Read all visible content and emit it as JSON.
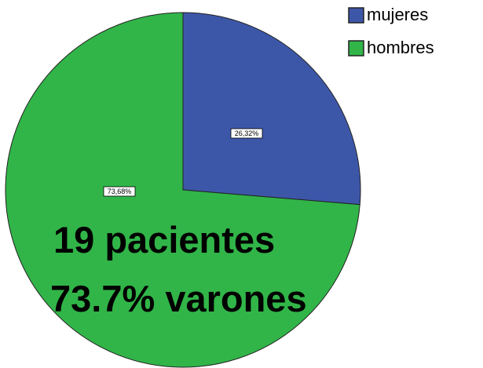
{
  "chart_data": {
    "type": "pie",
    "categories": [
      "mujeres",
      "hombres"
    ],
    "values": [
      26.32,
      73.68
    ],
    "value_labels": [
      "26,32%",
      "73,68%"
    ],
    "colors": [
      "#3d57a8",
      "#31b548"
    ],
    "legend": "upper right",
    "annotations": [
      "19 pacientes",
      "73.7% varones"
    ]
  }
}
